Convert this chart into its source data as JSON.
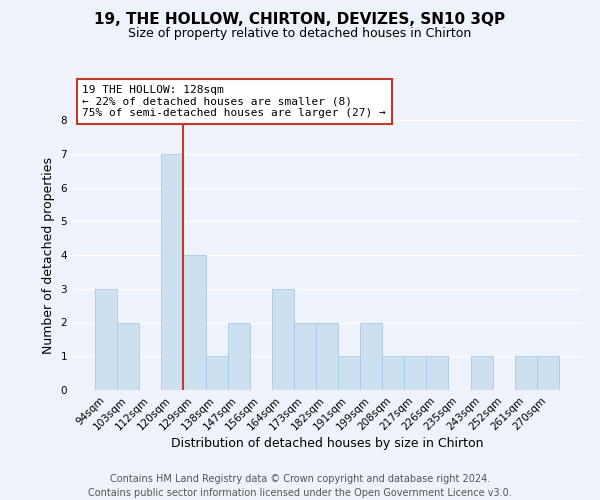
{
  "title": "19, THE HOLLOW, CHIRTON, DEVIZES, SN10 3QP",
  "subtitle": "Size of property relative to detached houses in Chirton",
  "xlabel": "Distribution of detached houses by size in Chirton",
  "ylabel": "Number of detached properties",
  "bar_labels": [
    "94sqm",
    "103sqm",
    "112sqm",
    "120sqm",
    "129sqm",
    "138sqm",
    "147sqm",
    "156sqm",
    "164sqm",
    "173sqm",
    "182sqm",
    "191sqm",
    "199sqm",
    "208sqm",
    "217sqm",
    "226sqm",
    "235sqm",
    "243sqm",
    "252sqm",
    "261sqm",
    "270sqm"
  ],
  "bar_values": [
    3,
    2,
    0,
    7,
    4,
    1,
    2,
    0,
    3,
    2,
    2,
    1,
    2,
    1,
    1,
    1,
    0,
    1,
    0,
    1,
    1
  ],
  "bar_color": "#cce0f0",
  "bar_edge_color": "#a8c8e8",
  "ylim": [
    0,
    8
  ],
  "yticks": [
    0,
    1,
    2,
    3,
    4,
    5,
    6,
    7,
    8
  ],
  "vline_color": "#c0392b",
  "annotation_line1": "19 THE HOLLOW: 128sqm",
  "annotation_line2": "← 22% of detached houses are smaller (8)",
  "annotation_line3": "75% of semi-detached houses are larger (27) →",
  "annotation_box_color": "#ffffff",
  "annotation_box_edge": "#c0392b",
  "footer1": "Contains HM Land Registry data © Crown copyright and database right 2024.",
  "footer2": "Contains public sector information licensed under the Open Government Licence v3.0.",
  "background_color": "#eef2fa",
  "grid_color": "#ffffff",
  "title_fontsize": 11,
  "subtitle_fontsize": 9,
  "axis_label_fontsize": 9,
  "tick_fontsize": 7.5,
  "annotation_fontsize": 8,
  "footer_fontsize": 7
}
